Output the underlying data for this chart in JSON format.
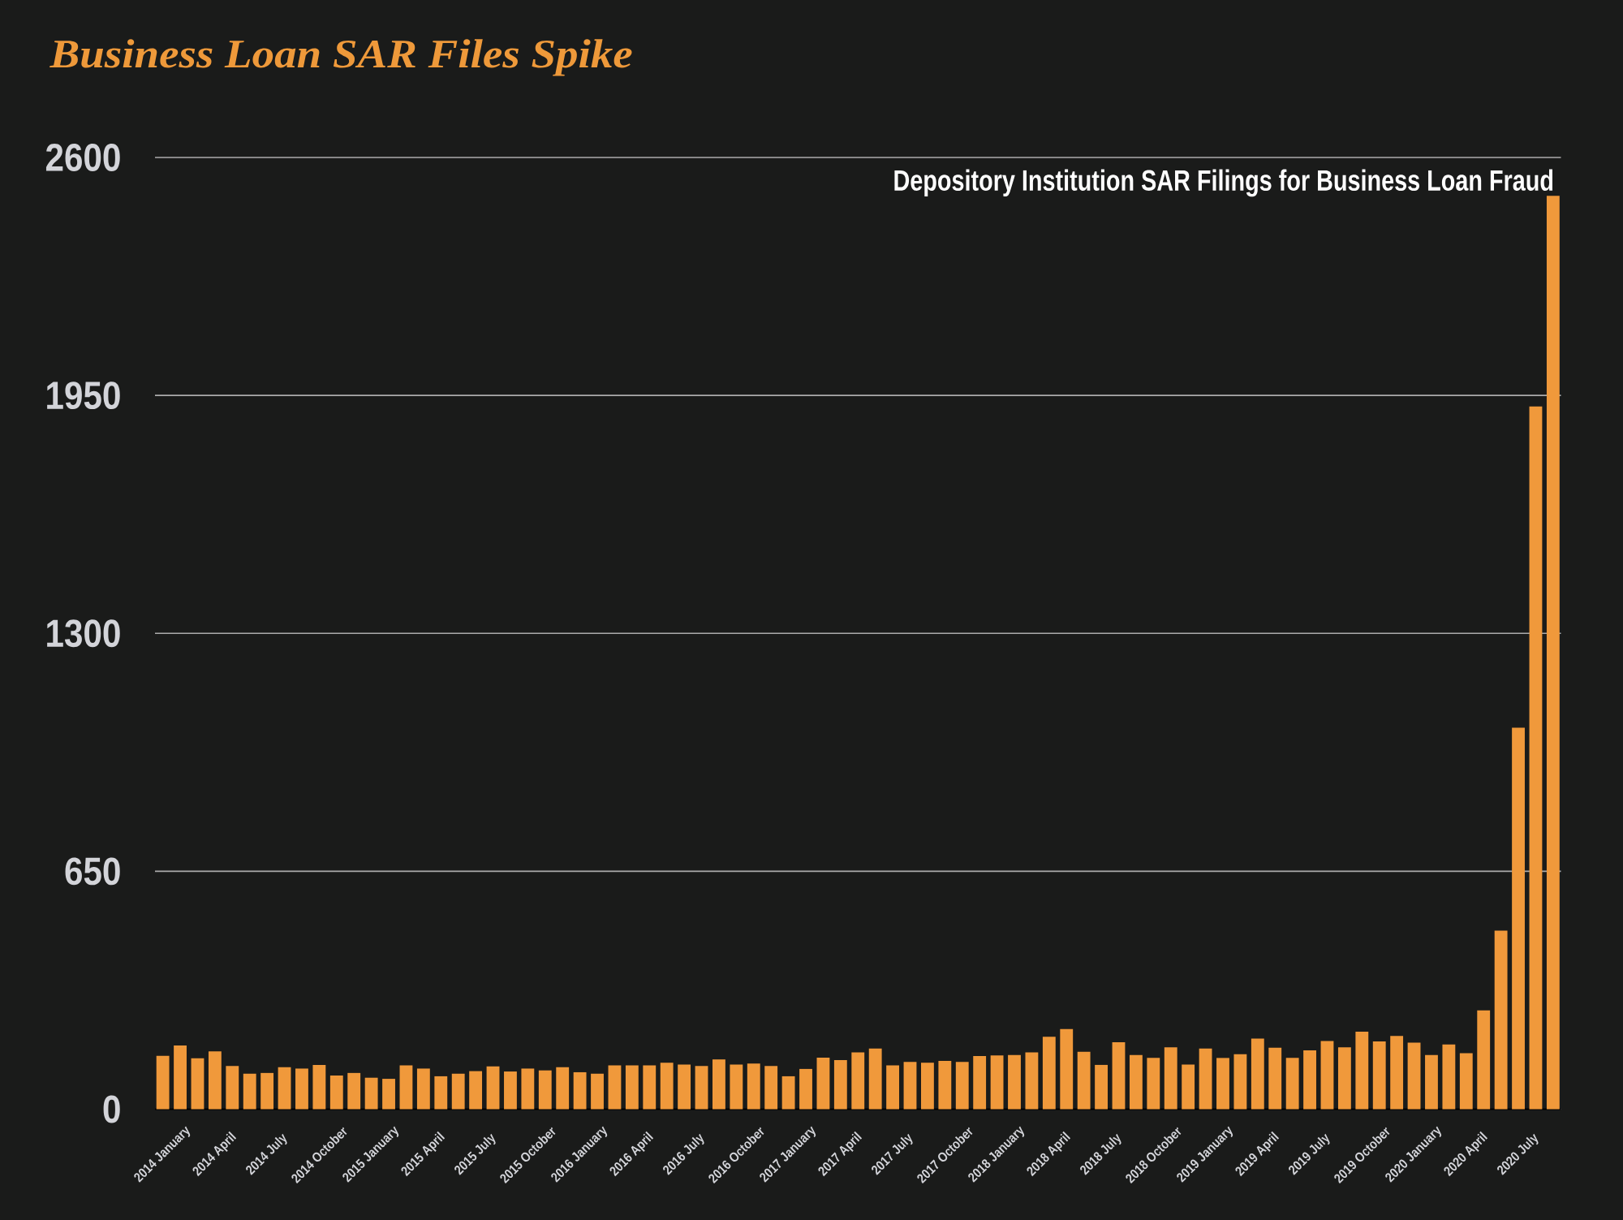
{
  "chart_data": {
    "type": "bar",
    "title": "Business Loan SAR Files Spike",
    "annotations": [
      "Depository Institution SAR Filings for Business Loan Fraud"
    ],
    "categories": [
      "2014 January",
      null,
      null,
      "2014 April",
      null,
      null,
      "2014 July",
      null,
      null,
      "2014 October",
      null,
      null,
      "2015 January",
      null,
      null,
      "2015 April",
      null,
      null,
      "2015 July",
      null,
      null,
      "2015 October",
      null,
      null,
      "2016 January",
      null,
      null,
      "2016 April",
      null,
      null,
      "2016 July",
      null,
      null,
      "2016 October",
      null,
      null,
      "2017 January",
      null,
      null,
      "2017 April",
      null,
      null,
      "2017 July",
      null,
      null,
      "2017 October",
      null,
      null,
      "2018 January",
      null,
      null,
      "2018 April",
      null,
      null,
      "2018 July",
      null,
      null,
      "2018 October",
      null,
      null,
      "2019 January",
      null,
      null,
      "2019 April",
      null,
      null,
      "2019 July",
      null,
      null,
      "2019 October",
      null,
      null,
      "2020 January",
      null,
      null,
      "2020 April",
      null,
      null,
      "2020 July",
      null,
      null
    ],
    "values": [
      146,
      174,
      139,
      158,
      118,
      97,
      99,
      115,
      111,
      121,
      92,
      99,
      86,
      83,
      120,
      111,
      90,
      97,
      104,
      117,
      103,
      111,
      106,
      115,
      101,
      97,
      120,
      120,
      120,
      127,
      122,
      118,
      136,
      122,
      125,
      118,
      90,
      110,
      141,
      134,
      155,
      166,
      120,
      129,
      127,
      132,
      129,
      145,
      147,
      148,
      155,
      198,
      219,
      157,
      121,
      183,
      148,
      140,
      169,
      122,
      166,
      140,
      150,
      193,
      168,
      140,
      161,
      186,
      169,
      212,
      185,
      200,
      182,
      148,
      177,
      153,
      270,
      488,
      1042,
      1920,
      2495
    ],
    "color": "#f0993b",
    "ylim": [
      0,
      2600
    ],
    "yticks": [
      0,
      650,
      1300,
      1950,
      2600
    ],
    "grid": "y"
  }
}
